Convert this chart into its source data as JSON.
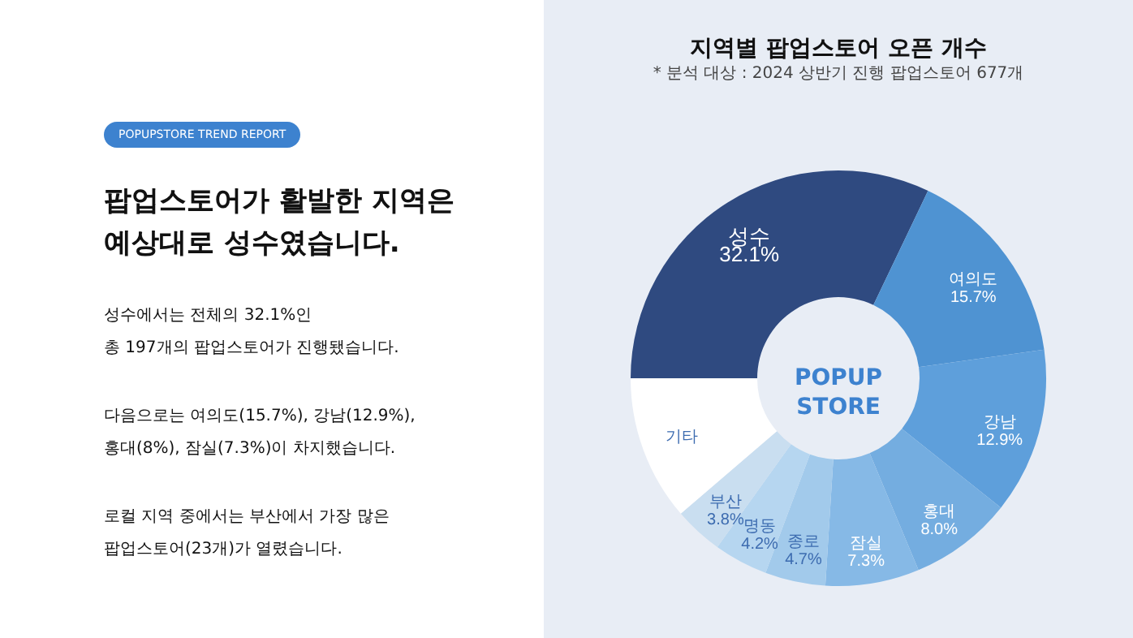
{
  "chart_data": {
    "type": "donut",
    "title": "지역별 팝업스토어 오픈 개수",
    "subtitle": "* 분석 대상 : 2024 상반기 진행 팝업스토어 677개",
    "categories": [
      "성수",
      "여의도",
      "강남",
      "홍대",
      "잠실",
      "종로",
      "명동",
      "부산",
      "기타"
    ],
    "values": [
      32.1,
      15.7,
      12.9,
      8.0,
      7.3,
      4.7,
      4.2,
      3.8,
      11.3
    ],
    "value_labels": [
      "32.1%",
      "15.7%",
      "12.9%",
      "8.0%",
      "7.3%",
      "4.7%",
      "4.2%",
      "3.8%",
      null
    ],
    "colors": [
      "#2f4a80",
      "#4f93d2",
      "#5e9fdb",
      "#74ade0",
      "#86b9e6",
      "#a2caeb",
      "#b6d6f0",
      "#c9def0",
      "#ffffff"
    ],
    "legend": false,
    "annotations": [
      "POPUPSTORE TREND REPORT",
      "팝업스토어가 활발한 지역은",
      "예상대로 성수였습니다.",
      "성수에서는 전체의 32.1%인",
      "총 197개의 팝업스토어가 진행됐습니다.",
      "다음으로는 여의도(15.7%), 강남(12.9%),",
      "홍대(8%), 잠실(7.3%)이 차지했습니다.",
      "로컬 지역 중에서는 부산에서 가장 많은",
      "팝업스토어(23개)가 열렸습니다.",
      "POPUP STORE"
    ]
  }
}
